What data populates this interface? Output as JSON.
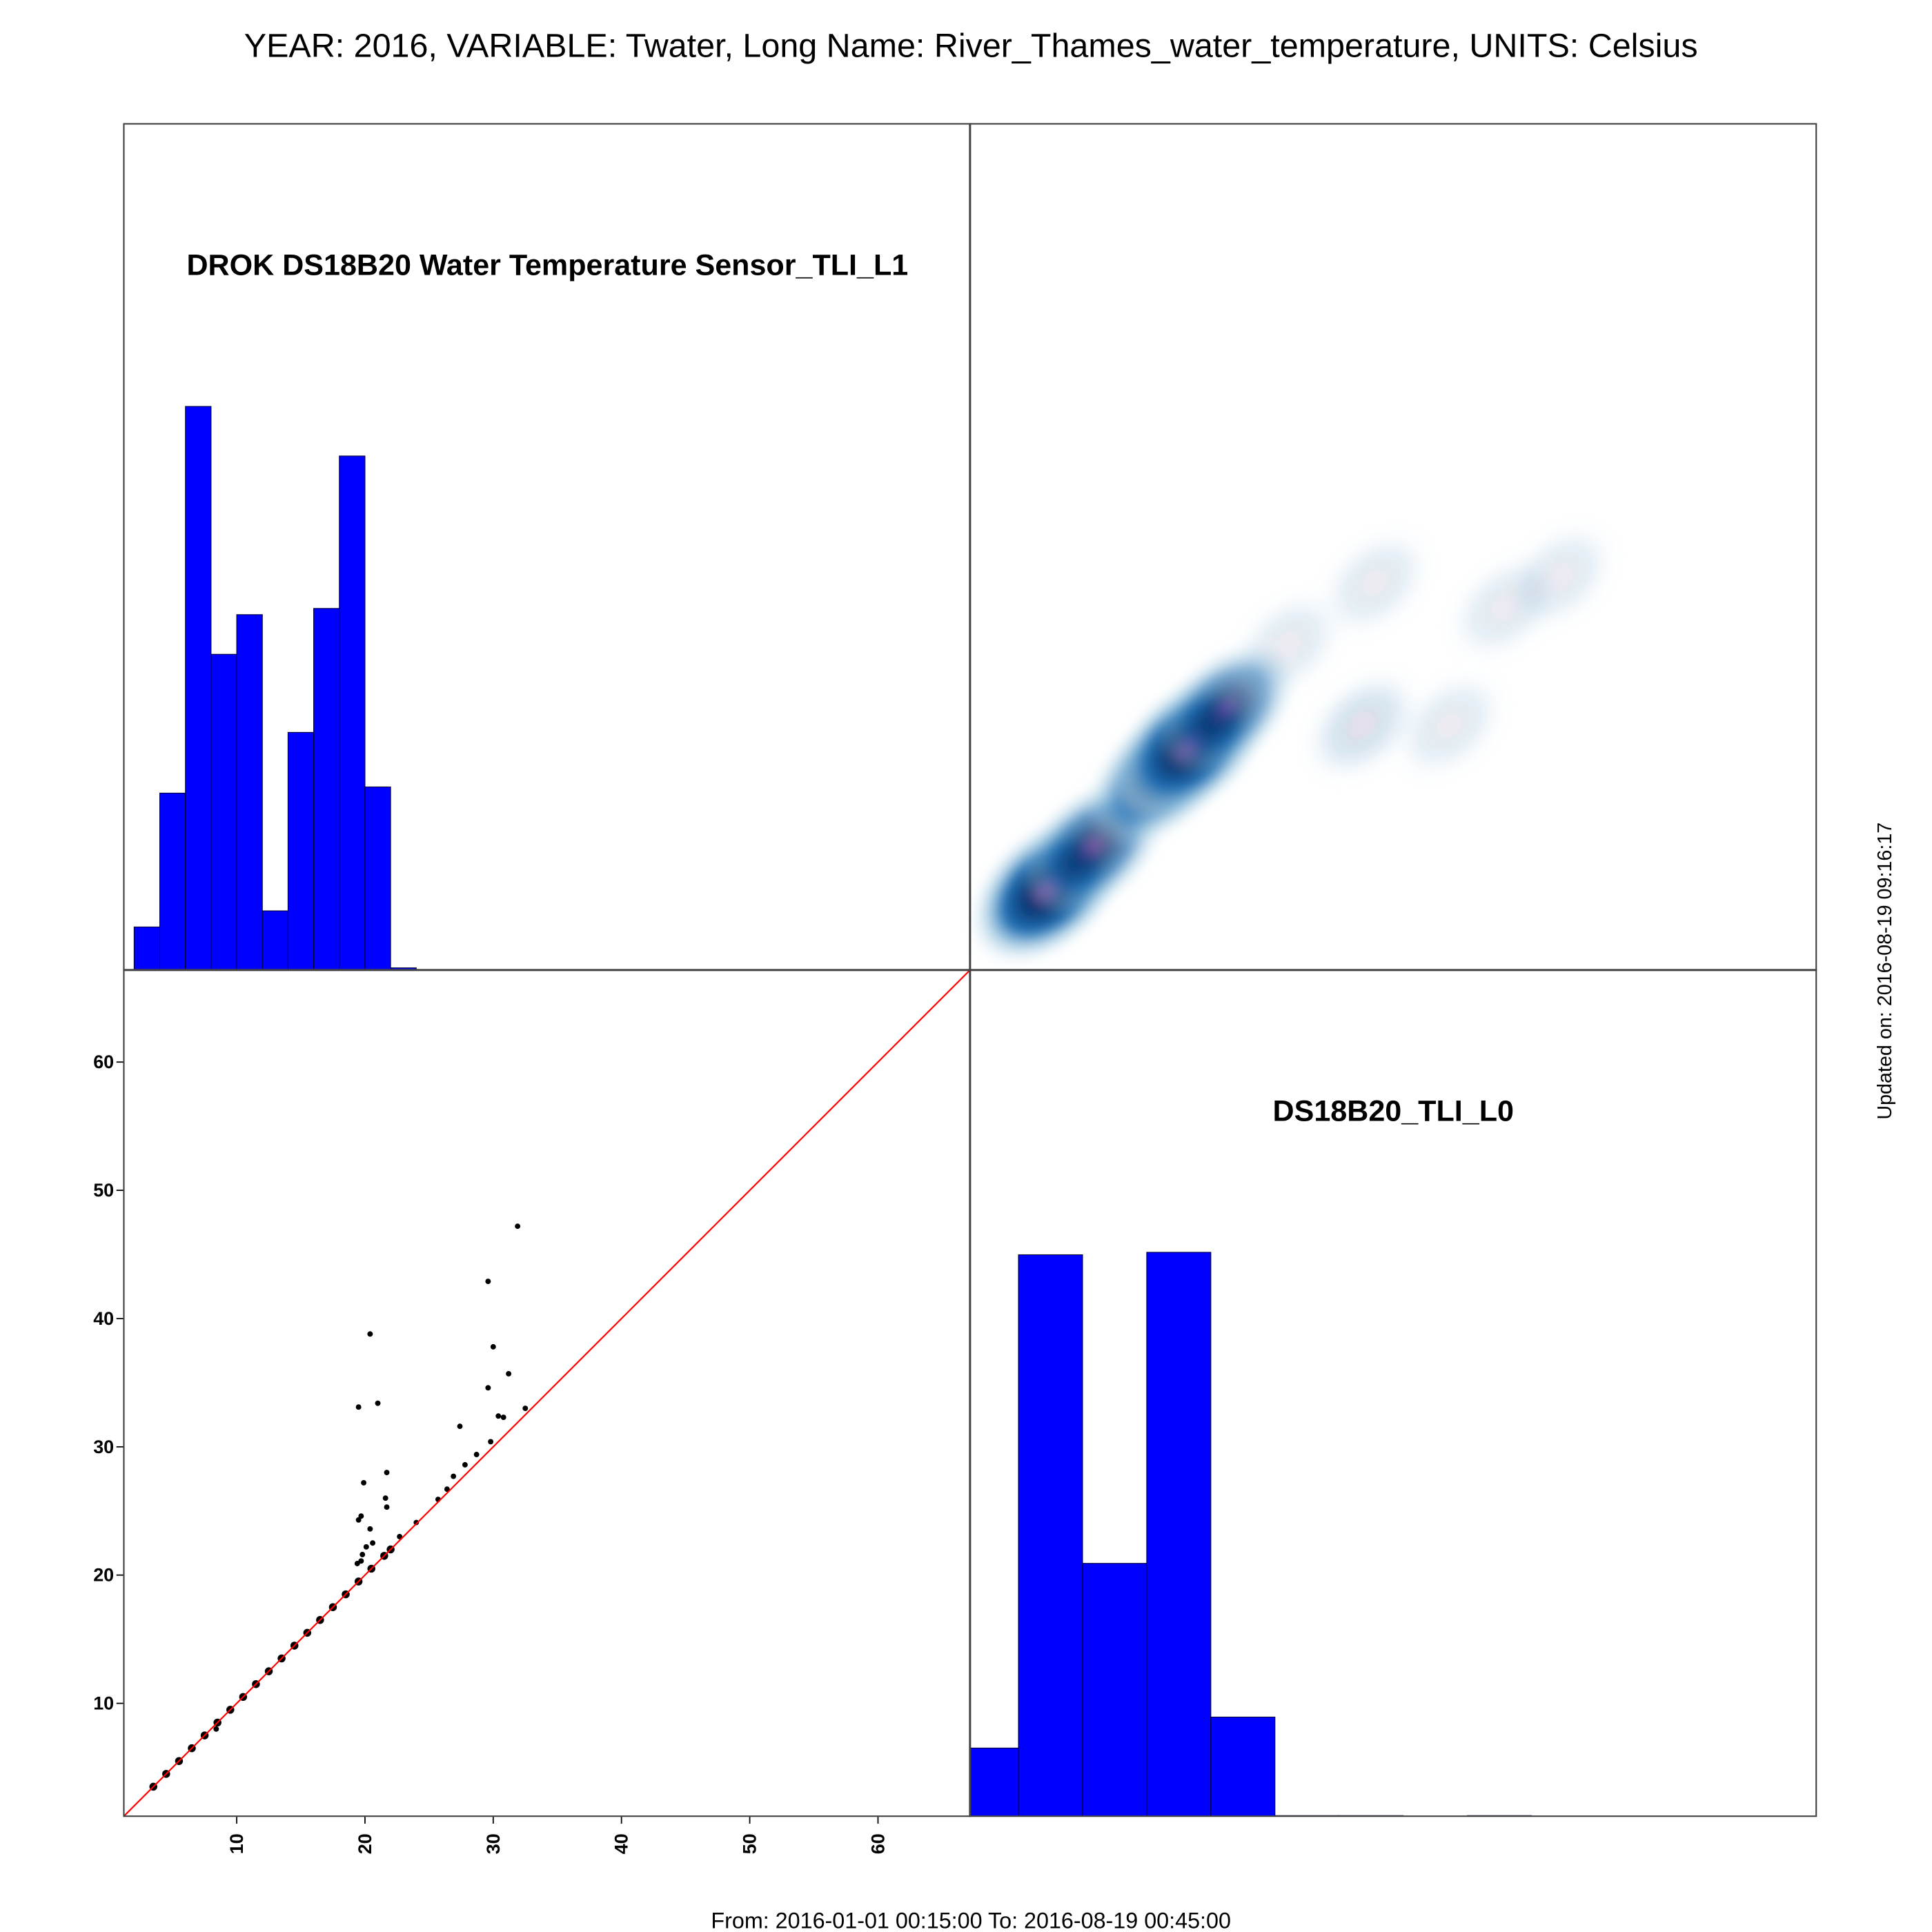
{
  "title": "YEAR: 2016, VARIABLE: Twater, Long Name: River_Thames_water_temperature, UNITS: Celsius",
  "updated": "Updated on: 2016-08-19 09:16:17",
  "period": "From: 2016-01-01 00:15:00 To: 2016-08-19 00:45:00",
  "chart_data": [
    {
      "type": "histogram",
      "title": "DROK DS18B20 Water Temperature Sensor_TLI_L1",
      "color": "#0000ff",
      "bins": [
        2,
        4,
        6,
        8,
        10,
        12,
        14,
        16,
        18,
        20,
        22,
        24,
        26,
        28,
        30,
        32,
        34
      ],
      "values": [
        35,
        143,
        455,
        255,
        287,
        48,
        192,
        292,
        415,
        148,
        2,
        0.5,
        0.5,
        0.5,
        0.5,
        0.5
      ],
      "xlim": [
        1.2,
        67.2
      ],
      "ylim": [
        0,
        683
      ]
    },
    {
      "type": "density",
      "xlim": [
        1.2,
        67.2
      ],
      "ylim": [
        1.2,
        67.2
      ],
      "x": [
        7.3,
        10.8,
        15.9,
        18.3,
        21.2,
        26.0,
        32.8,
        42.9,
        47.2,
        31.8,
        38.6
      ],
      "values": [
        7.5,
        10.8,
        16.2,
        18.6,
        21.6,
        26.6,
        31.4,
        29.5,
        31.9,
        20.3,
        20.3
      ],
      "weight": [
        1,
        0.7,
        0.7,
        1,
        0.6,
        0.1,
        0.1,
        0.1,
        0.1,
        0.15,
        0.1
      ]
    },
    {
      "type": "scatter",
      "color": "#000000",
      "line_color": "#ff0000",
      "xlim": [
        1.2,
        67.2
      ],
      "ylim": [
        1.2,
        67.2
      ],
      "xticks": [
        10,
        20,
        30,
        40,
        50,
        60
      ],
      "yticks": [
        10,
        20,
        30,
        40,
        50,
        60
      ],
      "x": [
        3.5,
        4.5,
        5.5,
        6.5,
        7.5,
        8.5,
        9.5,
        10.5,
        11.5,
        12.5,
        13.5,
        14.5,
        15.5,
        16.5,
        17.5,
        18.5,
        19.5,
        20.5,
        21.5,
        22,
        31.9,
        29.6,
        20.4,
        30.0,
        31.2,
        19.5,
        21.0,
        29.6,
        32.5,
        30.4,
        30.8,
        27.4,
        29.8,
        27.8,
        28.7,
        21.7,
        19.9,
        26.9,
        26.4,
        25.7,
        21.6,
        21.7,
        19.7,
        19.5,
        24.0,
        20.4,
        22.7,
        20.6,
        20.1,
        19.8,
        19.4,
        19.7,
        8.4
      ],
      "values": [
        3.5,
        4.5,
        5.5,
        6.5,
        7.5,
        8.5,
        9.5,
        10.5,
        11.5,
        12.5,
        13.5,
        14.5,
        15.5,
        16.5,
        17.5,
        18.5,
        19.5,
        20.5,
        21.5,
        22,
        47.2,
        42.9,
        38.8,
        37.8,
        35.7,
        33.1,
        33.4,
        34.6,
        33.0,
        32.4,
        32.3,
        31.6,
        30.4,
        28.6,
        29.4,
        28.0,
        27.2,
        27.7,
        26.7,
        25.9,
        26.0,
        25.3,
        24.6,
        24.3,
        24.1,
        23.6,
        23.0,
        22.5,
        22.2,
        21.6,
        20.9,
        21.1,
        8.0
      ]
    },
    {
      "type": "histogram",
      "title": "DS18B20_TLI_L0",
      "color": "#0000ff",
      "bins": [
        0,
        5,
        10,
        15,
        20,
        25,
        30,
        35,
        40,
        45,
        50,
        55,
        60,
        65
      ],
      "values": [
        55,
        453,
        204,
        455,
        80,
        0.5,
        0.5,
        0,
        0.5,
        0,
        0,
        0,
        0
      ],
      "xlim": [
        1.2,
        67.2
      ],
      "ylim": [
        0,
        683
      ]
    }
  ]
}
